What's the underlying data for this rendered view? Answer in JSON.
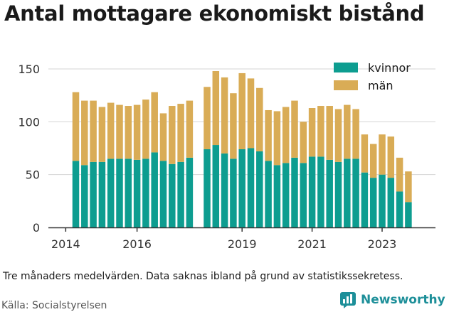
{
  "title": "Antal mottagare ekonomiskt bistånd",
  "caption": "Tre månaders medelvärden. Data saknas ibland på grund av statistikssekretess.",
  "source": "Källa: Socialstyrelsen",
  "brand": "Newsworthy",
  "colors": {
    "kvinnor": "#0d9d90",
    "man": "#d9ac56",
    "grid": "#d4d4d4"
  },
  "chart_data": {
    "type": "bar",
    "stacked": true,
    "ylim": [
      0,
      150
    ],
    "yticks": [
      0,
      50,
      100,
      150
    ],
    "xticks": [
      {
        "label": "2014",
        "slot": -1.15
      },
      {
        "label": "2016",
        "slot": 7
      },
      {
        "label": "2019",
        "slot": 19
      },
      {
        "label": "2021",
        "slot": 27
      },
      {
        "label": "2023",
        "slot": 35
      }
    ],
    "legend_position": "top-right",
    "series": [
      {
        "name": "kvinnor",
        "color": "#0d9d90",
        "values": [
          63,
          59,
          62,
          62,
          65,
          65,
          65,
          64,
          65,
          71,
          63,
          60,
          62,
          66,
          null,
          74,
          78,
          70,
          65,
          74,
          75,
          72,
          63,
          59,
          61,
          66,
          61,
          67,
          67,
          64,
          62,
          65,
          65,
          52,
          47,
          50,
          47,
          34,
          24
        ]
      },
      {
        "name": "män",
        "color": "#d9ac56",
        "values": [
          65,
          61,
          58,
          52,
          53,
          51,
          50,
          52,
          56,
          57,
          45,
          55,
          55,
          54,
          null,
          59,
          70,
          72,
          62,
          72,
          66,
          60,
          48,
          51,
          53,
          54,
          39,
          46,
          48,
          51,
          50,
          51,
          47,
          36,
          32,
          38,
          39,
          32,
          29
        ]
      }
    ]
  }
}
